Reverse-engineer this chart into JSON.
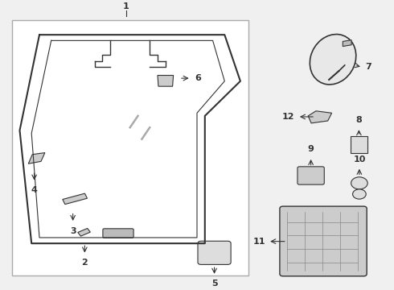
{
  "bg_color": "#f0f0f0",
  "border_color": "#888888",
  "line_color": "#333333",
  "part_color": "#555555",
  "title": "",
  "fig_width": 4.9,
  "fig_height": 3.6
}
